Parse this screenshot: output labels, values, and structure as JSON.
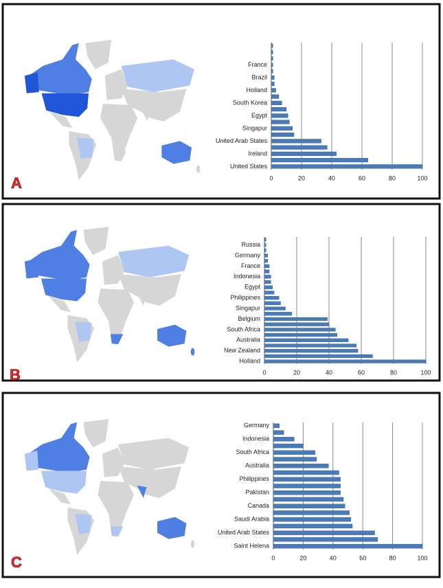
{
  "chart_data": [
    {
      "type": "bar",
      "label": "A",
      "orientation": "horizontal",
      "color": "#4a7ab8",
      "grid": true,
      "categories": [
        null,
        null,
        null,
        "France",
        null,
        "Brazil",
        null,
        "Holland",
        null,
        "South Korea",
        null,
        "Egypt",
        null,
        "Singapur",
        null,
        "United Arab States",
        null,
        "Ireland",
        null,
        "United States"
      ],
      "values": [
        1,
        1,
        1,
        1,
        1,
        2,
        2,
        3,
        5,
        7,
        10,
        11,
        12,
        14,
        15,
        33,
        37,
        43,
        64,
        100
      ],
      "xlim": [
        0,
        100
      ],
      "xticks": [
        0,
        20,
        40,
        60,
        80,
        100
      ]
    },
    {
      "type": "bar",
      "label": "B",
      "orientation": "horizontal",
      "color": "#4a7ab8",
      "grid": true,
      "categories": [
        null,
        "Russia",
        null,
        "Germany",
        null,
        "France",
        null,
        "Indonesia",
        null,
        "Egypt",
        null,
        "Philippines",
        null,
        "Singapur",
        null,
        "Belgium",
        null,
        "South Africa",
        null,
        "Australia",
        null,
        "New Zealand",
        null,
        "Holland"
      ],
      "values": [
        1,
        1,
        1,
        2,
        2,
        3,
        3,
        4,
        4,
        5,
        6,
        9,
        10,
        13,
        17,
        39,
        40,
        44,
        45,
        52,
        57,
        58,
        67,
        100
      ],
      "xlim": [
        0,
        100
      ],
      "xticks": [
        0,
        20,
        40,
        60,
        80,
        100
      ]
    },
    {
      "type": "bar",
      "label": "C",
      "orientation": "horizontal",
      "color": "#4a7ab8",
      "grid": true,
      "categories": [
        "Germany",
        null,
        "Indonesia",
        null,
        "South Africa",
        null,
        "Australia",
        null,
        "Philippines",
        null,
        "Pakistan",
        null,
        "Canada",
        null,
        "Saudi Arabia",
        null,
        "United Arab States",
        null,
        "Saint Helena"
      ],
      "values": [
        4,
        7,
        14,
        20,
        28,
        29,
        37,
        44,
        45,
        45,
        45,
        47,
        48,
        51,
        52,
        53,
        68,
        70,
        100
      ],
      "xlim": [
        0,
        100
      ],
      "xticks": [
        0,
        20,
        40,
        60,
        80,
        100
      ]
    }
  ]
}
